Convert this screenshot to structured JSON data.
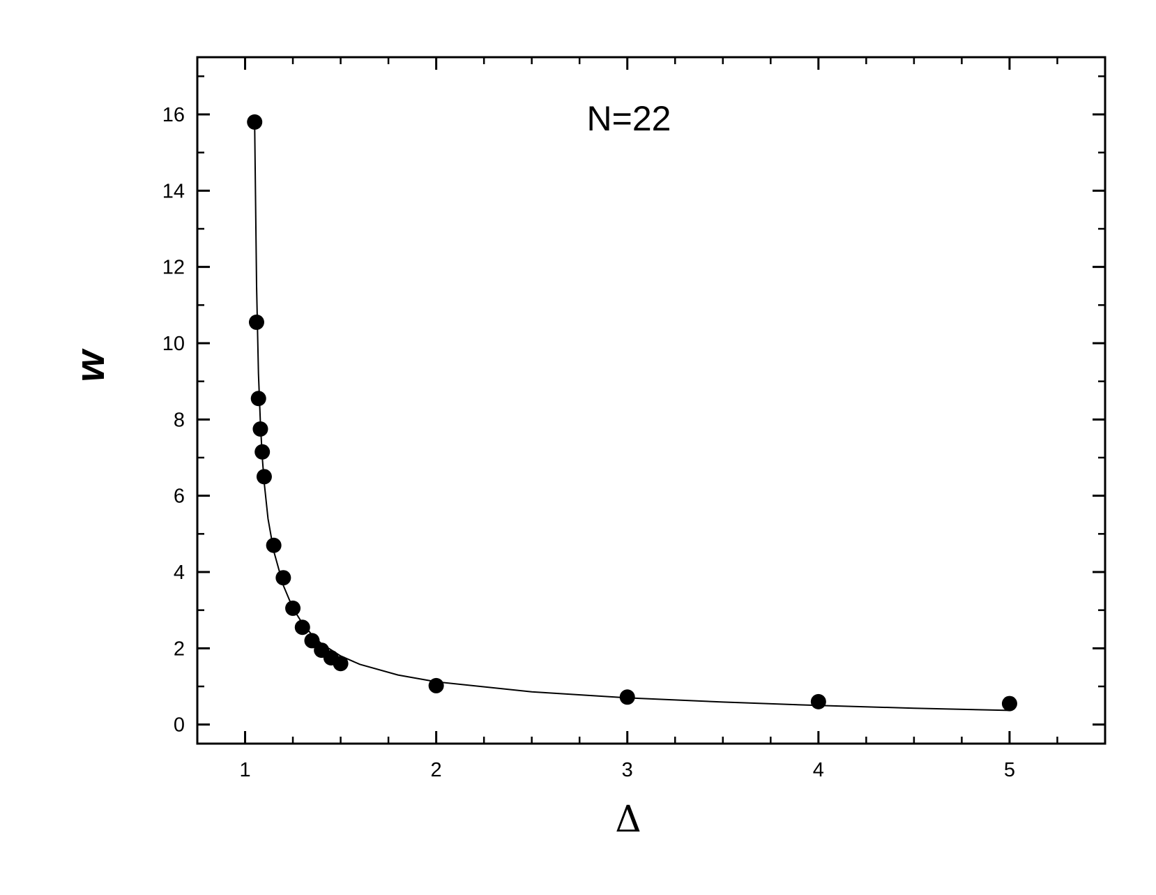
{
  "chart_data": {
    "type": "scatter",
    "title": "",
    "annotation": "N=22",
    "xlabel": "Δ",
    "ylabel": "w",
    "xlim": [
      0.75,
      5.5
    ],
    "ylim": [
      -0.5,
      17.5
    ],
    "x_ticks": [
      1,
      2,
      3,
      4,
      5
    ],
    "x_tick_labels": [
      "1",
      "2",
      "3",
      "4",
      "5"
    ],
    "y_ticks": [
      0,
      2,
      4,
      6,
      8,
      10,
      12,
      14,
      16
    ],
    "y_tick_labels": [
      "0",
      "2",
      "4",
      "6",
      "8",
      "10",
      "12",
      "14",
      "16"
    ],
    "grid": false,
    "legend": "none",
    "series": [
      {
        "kind": "points",
        "x": [
          1.05,
          1.06,
          1.07,
          1.08,
          1.09,
          1.1,
          1.15,
          1.2,
          1.25,
          1.3,
          1.35,
          1.4,
          1.45,
          1.5,
          2,
          3,
          4,
          5
        ],
        "y": [
          15.8,
          10.55,
          8.55,
          7.75,
          7.15,
          6.5,
          4.7,
          3.85,
          3.05,
          2.55,
          2.2,
          1.95,
          1.75,
          1.6,
          1.02,
          0.72,
          0.6,
          0.55
        ]
      },
      {
        "kind": "fit-line",
        "x": [
          1.05,
          1.06,
          1.07,
          1.08,
          1.09,
          1.1,
          1.12,
          1.15,
          1.2,
          1.25,
          1.3,
          1.35,
          1.4,
          1.5,
          1.6,
          1.8,
          2,
          2.5,
          3,
          3.5,
          4,
          4.5,
          5
        ],
        "y": [
          15.8,
          11.5,
          9.2,
          7.9,
          7.0,
          6.35,
          5.4,
          4.55,
          3.65,
          3.05,
          2.65,
          2.35,
          2.12,
          1.8,
          1.58,
          1.3,
          1.12,
          0.86,
          0.7,
          0.59,
          0.5,
          0.43,
          0.37
        ]
      }
    ],
    "colors": {
      "points": "#000000",
      "line": "#000000",
      "axes": "#000000"
    }
  }
}
